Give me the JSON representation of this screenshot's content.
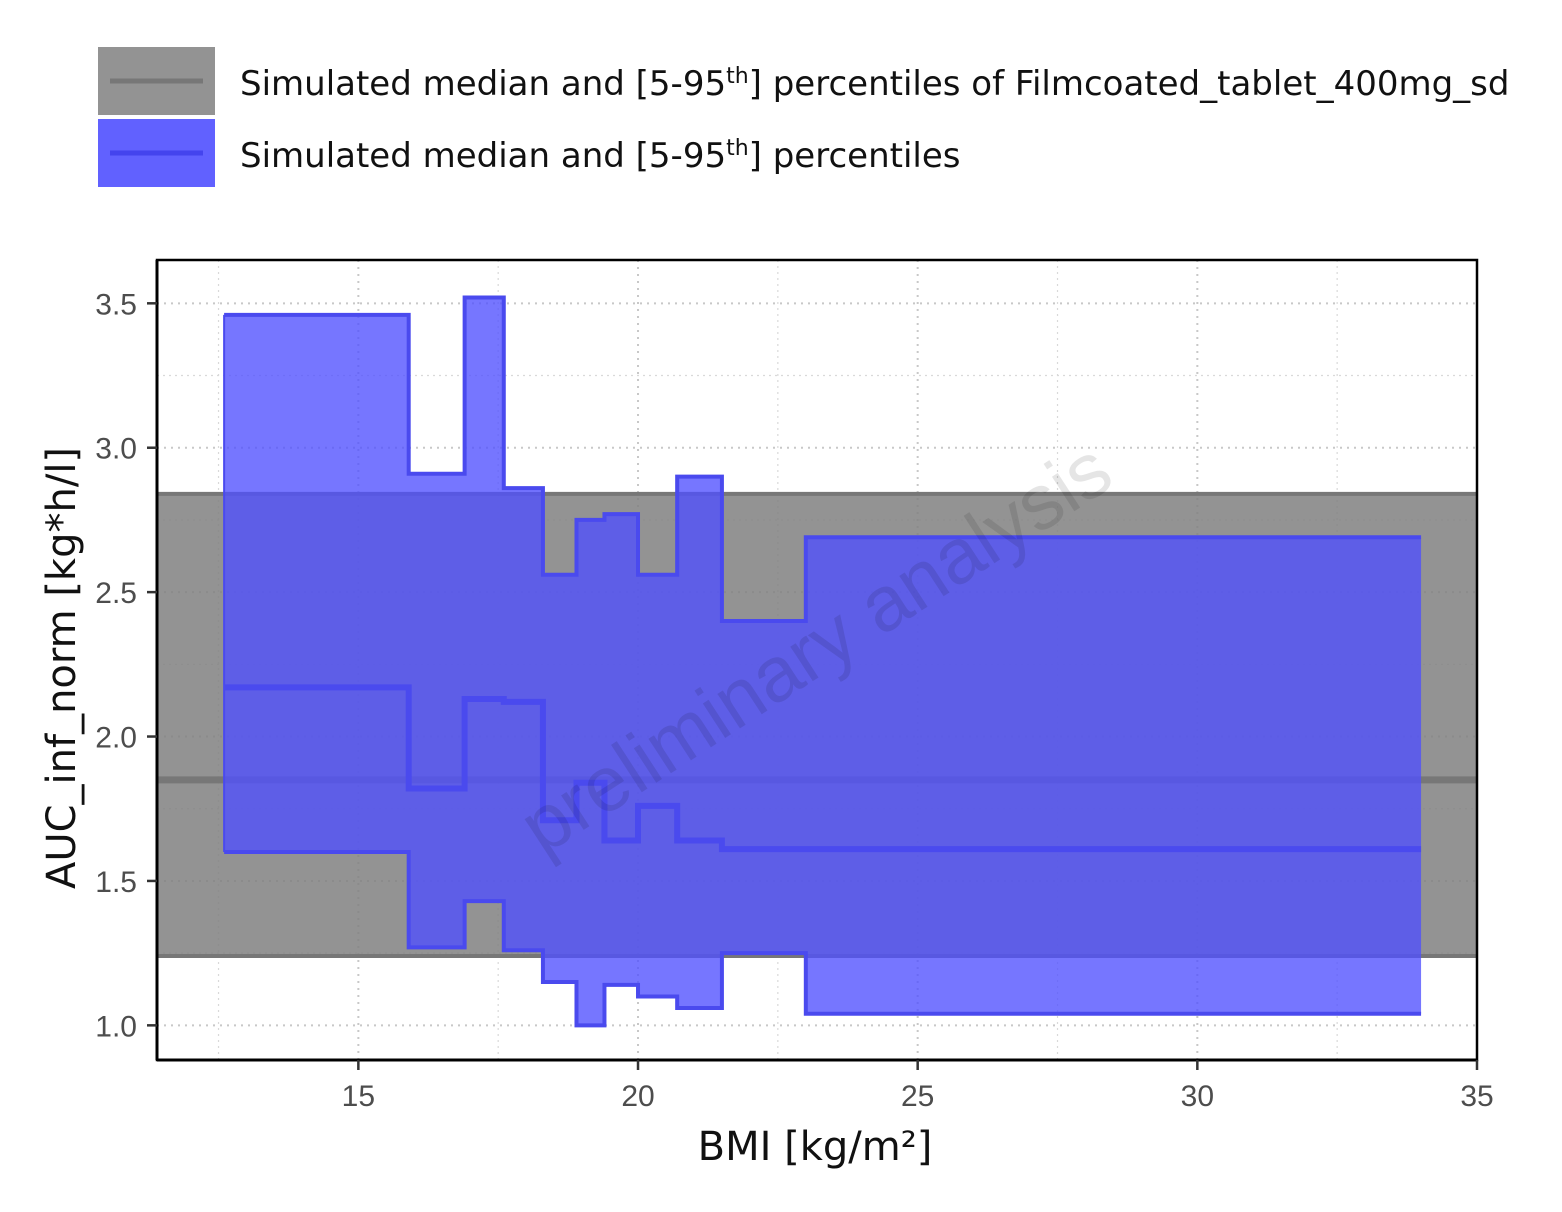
{
  "chart_data": {
    "type": "area",
    "xlabel": "BMI [kg/m²]",
    "ylabel": "AUC_inf_norm [kg*h/l]",
    "xlim": [
      11.4,
      35
    ],
    "ylim": [
      0.88,
      3.65
    ],
    "x_ticks": [
      15,
      20,
      25,
      30,
      35
    ],
    "y_ticks": [
      1.0,
      1.5,
      2.0,
      2.5,
      3.0,
      3.5
    ],
    "x_tick_labels": [
      "15",
      "20",
      "25",
      "30",
      "35"
    ],
    "y_tick_labels": [
      "1.0",
      "1.5",
      "2.0",
      "2.5",
      "3.0",
      "3.5"
    ],
    "grid": true,
    "legend_position": "top",
    "watermark": "preliminary analysis",
    "series": [
      {
        "name": "Simulated median and [5-95th] percentiles of Filmcoated_tablet_400mg_sd",
        "legend_parts": [
          "Simulated median and [5-95",
          "th",
          "] percentiles of Filmcoated_tablet_400mg_sd"
        ],
        "color": "#808080",
        "kind": "constant_band",
        "median": 1.85,
        "lower": 1.24,
        "upper": 2.84
      },
      {
        "name": "Simulated median and [5-95th] percentiles",
        "legend_parts": [
          "Simulated median and [5-95",
          "th",
          "] percentiles"
        ],
        "color": "#5050FF",
        "kind": "step_band",
        "bins": [
          {
            "x0": 12.6,
            "x1": 15.9,
            "lower": 1.6,
            "median": 2.17,
            "upper": 3.46
          },
          {
            "x0": 15.9,
            "x1": 16.9,
            "lower": 1.27,
            "median": 1.82,
            "upper": 2.91
          },
          {
            "x0": 16.9,
            "x1": 17.6,
            "lower": 1.43,
            "median": 2.13,
            "upper": 3.52
          },
          {
            "x0": 17.6,
            "x1": 18.3,
            "lower": 1.26,
            "median": 2.12,
            "upper": 2.86
          },
          {
            "x0": 18.3,
            "x1": 18.9,
            "lower": 1.15,
            "median": 1.71,
            "upper": 2.56
          },
          {
            "x0": 18.9,
            "x1": 19.4,
            "lower": 1.0,
            "median": 1.84,
            "upper": 2.75
          },
          {
            "x0": 19.4,
            "x1": 20.0,
            "lower": 1.14,
            "median": 1.64,
            "upper": 2.77
          },
          {
            "x0": 20.0,
            "x1": 20.7,
            "lower": 1.1,
            "median": 1.76,
            "upper": 2.56
          },
          {
            "x0": 20.7,
            "x1": 21.5,
            "lower": 1.06,
            "median": 1.64,
            "upper": 2.9
          },
          {
            "x0": 21.5,
            "x1": 23.0,
            "lower": 1.25,
            "median": 1.61,
            "upper": 2.4
          },
          {
            "x0": 23.0,
            "x1": 34.0,
            "lower": 1.04,
            "median": 1.61,
            "upper": 2.69
          }
        ]
      }
    ]
  }
}
